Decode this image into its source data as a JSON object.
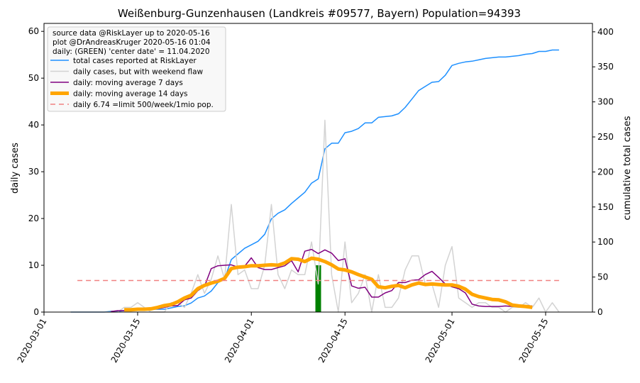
{
  "chart_data": {
    "type": "line",
    "title": "Weißenburg-Gunzenhausen (Landkreis #09577, Bayern) Population=94393",
    "y_label": "daily cases",
    "y_label_color": "#800080",
    "y2_label": "cumulative total cases",
    "y2_label_color": "#1e90ff",
    "legend_note": [
      "source data @RiskLayer up to 2020-05-16",
      "plot @DrAndreasKruger 2020-05-16 01:04",
      "daily: (GREEN) 'center date' = 11.04.2020"
    ],
    "legend": "upper left",
    "xlim": [
      "2020-03-01",
      "2020-05-22"
    ],
    "xticks": [
      "2020-03-01",
      "2020-03-15",
      "2020-04-01",
      "2020-04-15",
      "2020-05-01",
      "2020-05-15"
    ],
    "ylim": [
      0,
      61.7
    ],
    "yticks": [
      0,
      10,
      20,
      30,
      40,
      50,
      60
    ],
    "y2lim": [
      0,
      412
    ],
    "y2ticks": [
      0,
      50,
      100,
      150,
      200,
      250,
      300,
      350,
      400
    ],
    "x": [
      "2020-03-05",
      "2020-03-06",
      "2020-03-07",
      "2020-03-08",
      "2020-03-09",
      "2020-03-10",
      "2020-03-11",
      "2020-03-12",
      "2020-03-13",
      "2020-03-14",
      "2020-03-15",
      "2020-03-16",
      "2020-03-17",
      "2020-03-18",
      "2020-03-19",
      "2020-03-20",
      "2020-03-21",
      "2020-03-22",
      "2020-03-23",
      "2020-03-24",
      "2020-03-25",
      "2020-03-26",
      "2020-03-27",
      "2020-03-28",
      "2020-03-29",
      "2020-03-30",
      "2020-03-31",
      "2020-04-01",
      "2020-04-02",
      "2020-04-03",
      "2020-04-04",
      "2020-04-05",
      "2020-04-06",
      "2020-04-07",
      "2020-04-08",
      "2020-04-09",
      "2020-04-10",
      "2020-04-11",
      "2020-04-12",
      "2020-04-13",
      "2020-04-14",
      "2020-04-15",
      "2020-04-16",
      "2020-04-17",
      "2020-04-18",
      "2020-04-19",
      "2020-04-20",
      "2020-04-21",
      "2020-04-22",
      "2020-04-23",
      "2020-04-24",
      "2020-04-25",
      "2020-04-26",
      "2020-04-27",
      "2020-04-28",
      "2020-04-29",
      "2020-04-30",
      "2020-05-01",
      "2020-05-02",
      "2020-05-03",
      "2020-05-04",
      "2020-05-05",
      "2020-05-06",
      "2020-05-07",
      "2020-05-08",
      "2020-05-09",
      "2020-05-10",
      "2020-05-11",
      "2020-05-12",
      "2020-05-13",
      "2020-05-14",
      "2020-05-15",
      "2020-05-16",
      "2020-05-17"
    ],
    "series": [
      {
        "name": "total cases reported at RiskLayer",
        "color": "#1e90ff",
        "width": 1.5,
        "axis": "y2",
        "values": [
          0,
          0,
          0,
          0,
          0,
          0,
          1,
          1,
          2,
          3,
          3,
          4,
          4,
          4,
          4,
          6,
          8,
          9,
          13,
          20,
          23,
          30,
          42,
          47,
          75,
          83,
          91,
          96,
          101,
          111,
          133,
          141,
          146,
          155,
          163,
          171,
          184,
          190,
          233,
          241,
          241,
          256,
          258,
          262,
          270,
          270,
          278,
          279,
          280,
          283,
          292,
          304,
          316,
          322,
          328,
          329,
          338,
          352,
          355,
          357,
          358,
          360,
          362,
          363,
          364,
          364,
          365,
          366,
          368,
          369,
          372,
          372,
          374,
          374
        ]
      },
      {
        "name": "daily cases, but with weekend flaw",
        "color": "#d3d3d3",
        "width": 1.5,
        "values": [
          0,
          0,
          0,
          0,
          0,
          0,
          0,
          0,
          1,
          1,
          2,
          1,
          0,
          0,
          0,
          2,
          2,
          1,
          4,
          8,
          4,
          7,
          12,
          7,
          23,
          8,
          9,
          5,
          5,
          10,
          23,
          8,
          5,
          9,
          8,
          8,
          15,
          6,
          41,
          8,
          0,
          15,
          2,
          4,
          8,
          0,
          8,
          1,
          1,
          3,
          9,
          12,
          12,
          6,
          6,
          1,
          10,
          14,
          3,
          2,
          1,
          2,
          2,
          1,
          1,
          0,
          1,
          1,
          2,
          1,
          3,
          0,
          2,
          0
        ]
      },
      {
        "name": "daily: moving average 7 days",
        "color": "#800080",
        "width": 1.5,
        "values": [
          null,
          null,
          null,
          null,
          null,
          null,
          0.1,
          0.3,
          0.3,
          0.4,
          0.6,
          0.6,
          0.6,
          0.7,
          1,
          1.3,
          1.4,
          2.6,
          3,
          4.6,
          5.5,
          9.3,
          9.9,
          10,
          10.1,
          9.6,
          9.8,
          11.6,
          9.5,
          9.1,
          9.1,
          9.5,
          9.9,
          11,
          8.6,
          13,
          13.4,
          12.5,
          13.3,
          12.6,
          11,
          11.4,
          5.6,
          5.1,
          5.3,
          3.2,
          3.2,
          4.1,
          4.6,
          6.3,
          6.3,
          6.8,
          6.9,
          8,
          8.7,
          7.4,
          6,
          5.4,
          5,
          4.1,
          1.7,
          1.3,
          1.2,
          1.2,
          1.2,
          1.3,
          1.2,
          1.2,
          1.4,
          1.3,
          null,
          null,
          null,
          null
        ]
      },
      {
        "name": "daily: moving average 14 days",
        "color": "#ffa500",
        "width": 5,
        "values": [
          null,
          null,
          null,
          null,
          null,
          null,
          null,
          null,
          0.5,
          0.5,
          0.6,
          0.6,
          0.7,
          1,
          1.4,
          1.6,
          2.2,
          3,
          3.6,
          5,
          5.7,
          6.2,
          6.6,
          7.2,
          9.3,
          9.6,
          9.7,
          9.9,
          9.9,
          10,
          10.1,
          10,
          10.5,
          11.4,
          11.3,
          10.8,
          11.5,
          11.3,
          10.8,
          10.1,
          9.2,
          9,
          8.6,
          8,
          7.5,
          7,
          5.4,
          5.2,
          5.5,
          5.7,
          5.2,
          5.8,
          6.2,
          5.9,
          6,
          5.9,
          5.8,
          5.8,
          5.5,
          4.9,
          3.8,
          3.3,
          3,
          2.7,
          2.6,
          2.2,
          1.5,
          1.3,
          1.2,
          1,
          null,
          null,
          null,
          null
        ]
      },
      {
        "name": "daily 6.74 =limit 500/week/1mio pop.",
        "color": "#f08080",
        "width": 1.5,
        "dash": true,
        "x": [
          "2020-03-06",
          "2020-05-17"
        ],
        "values": [
          6.74,
          6.74
        ]
      }
    ],
    "highlight": {
      "x": "2020-04-11",
      "value": 10,
      "color": "#008000"
    }
  }
}
